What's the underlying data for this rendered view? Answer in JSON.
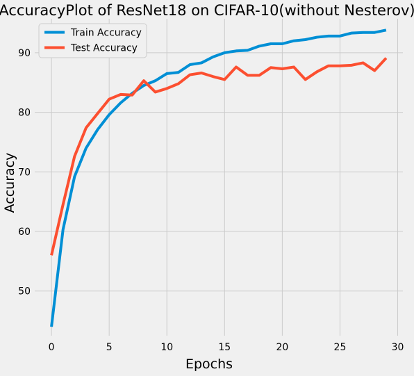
{
  "chart_data": {
    "type": "line",
    "title": "AccuracyPlot of ResNet18 on CIFAR-10(without Nesterov)",
    "xlabel": "Epochs",
    "ylabel": "Accuracy",
    "xlim": [
      -1.45,
      30.45
    ],
    "ylim": [
      42.5,
      95.7
    ],
    "xticks": [
      0,
      5,
      10,
      15,
      20,
      25,
      30
    ],
    "yticks": [
      50,
      60,
      70,
      80,
      90
    ],
    "grid": true,
    "legend_position": "upper-left",
    "x": [
      0,
      1,
      2,
      3,
      4,
      5,
      6,
      7,
      8,
      9,
      10,
      11,
      12,
      13,
      14,
      15,
      16,
      17,
      18,
      19,
      20,
      21,
      22,
      23,
      24,
      25,
      26,
      27,
      28,
      29
    ],
    "series": [
      {
        "name": "Train Accuracy",
        "color": "#008fd5",
        "values": [
          44.0,
          60.3,
          69.2,
          74.0,
          77.1,
          79.6,
          81.6,
          83.2,
          84.5,
          85.3,
          86.5,
          86.7,
          88.0,
          88.3,
          89.3,
          90.0,
          90.3,
          90.4,
          91.1,
          91.5,
          91.5,
          92.0,
          92.2,
          92.6,
          92.8,
          92.8,
          93.3,
          93.4,
          93.4,
          93.8
        ]
      },
      {
        "name": "Test Accuracy",
        "color": "#fc4f30",
        "values": [
          56.0,
          64.5,
          72.6,
          77.4,
          79.8,
          82.2,
          83.0,
          82.9,
          85.3,
          83.4,
          84.0,
          84.8,
          86.3,
          86.6,
          86.0,
          85.5,
          87.6,
          86.2,
          86.2,
          87.5,
          87.3,
          87.6,
          85.5,
          86.8,
          87.8,
          87.8,
          87.9,
          88.3,
          87.0,
          89.1
        ]
      }
    ]
  }
}
